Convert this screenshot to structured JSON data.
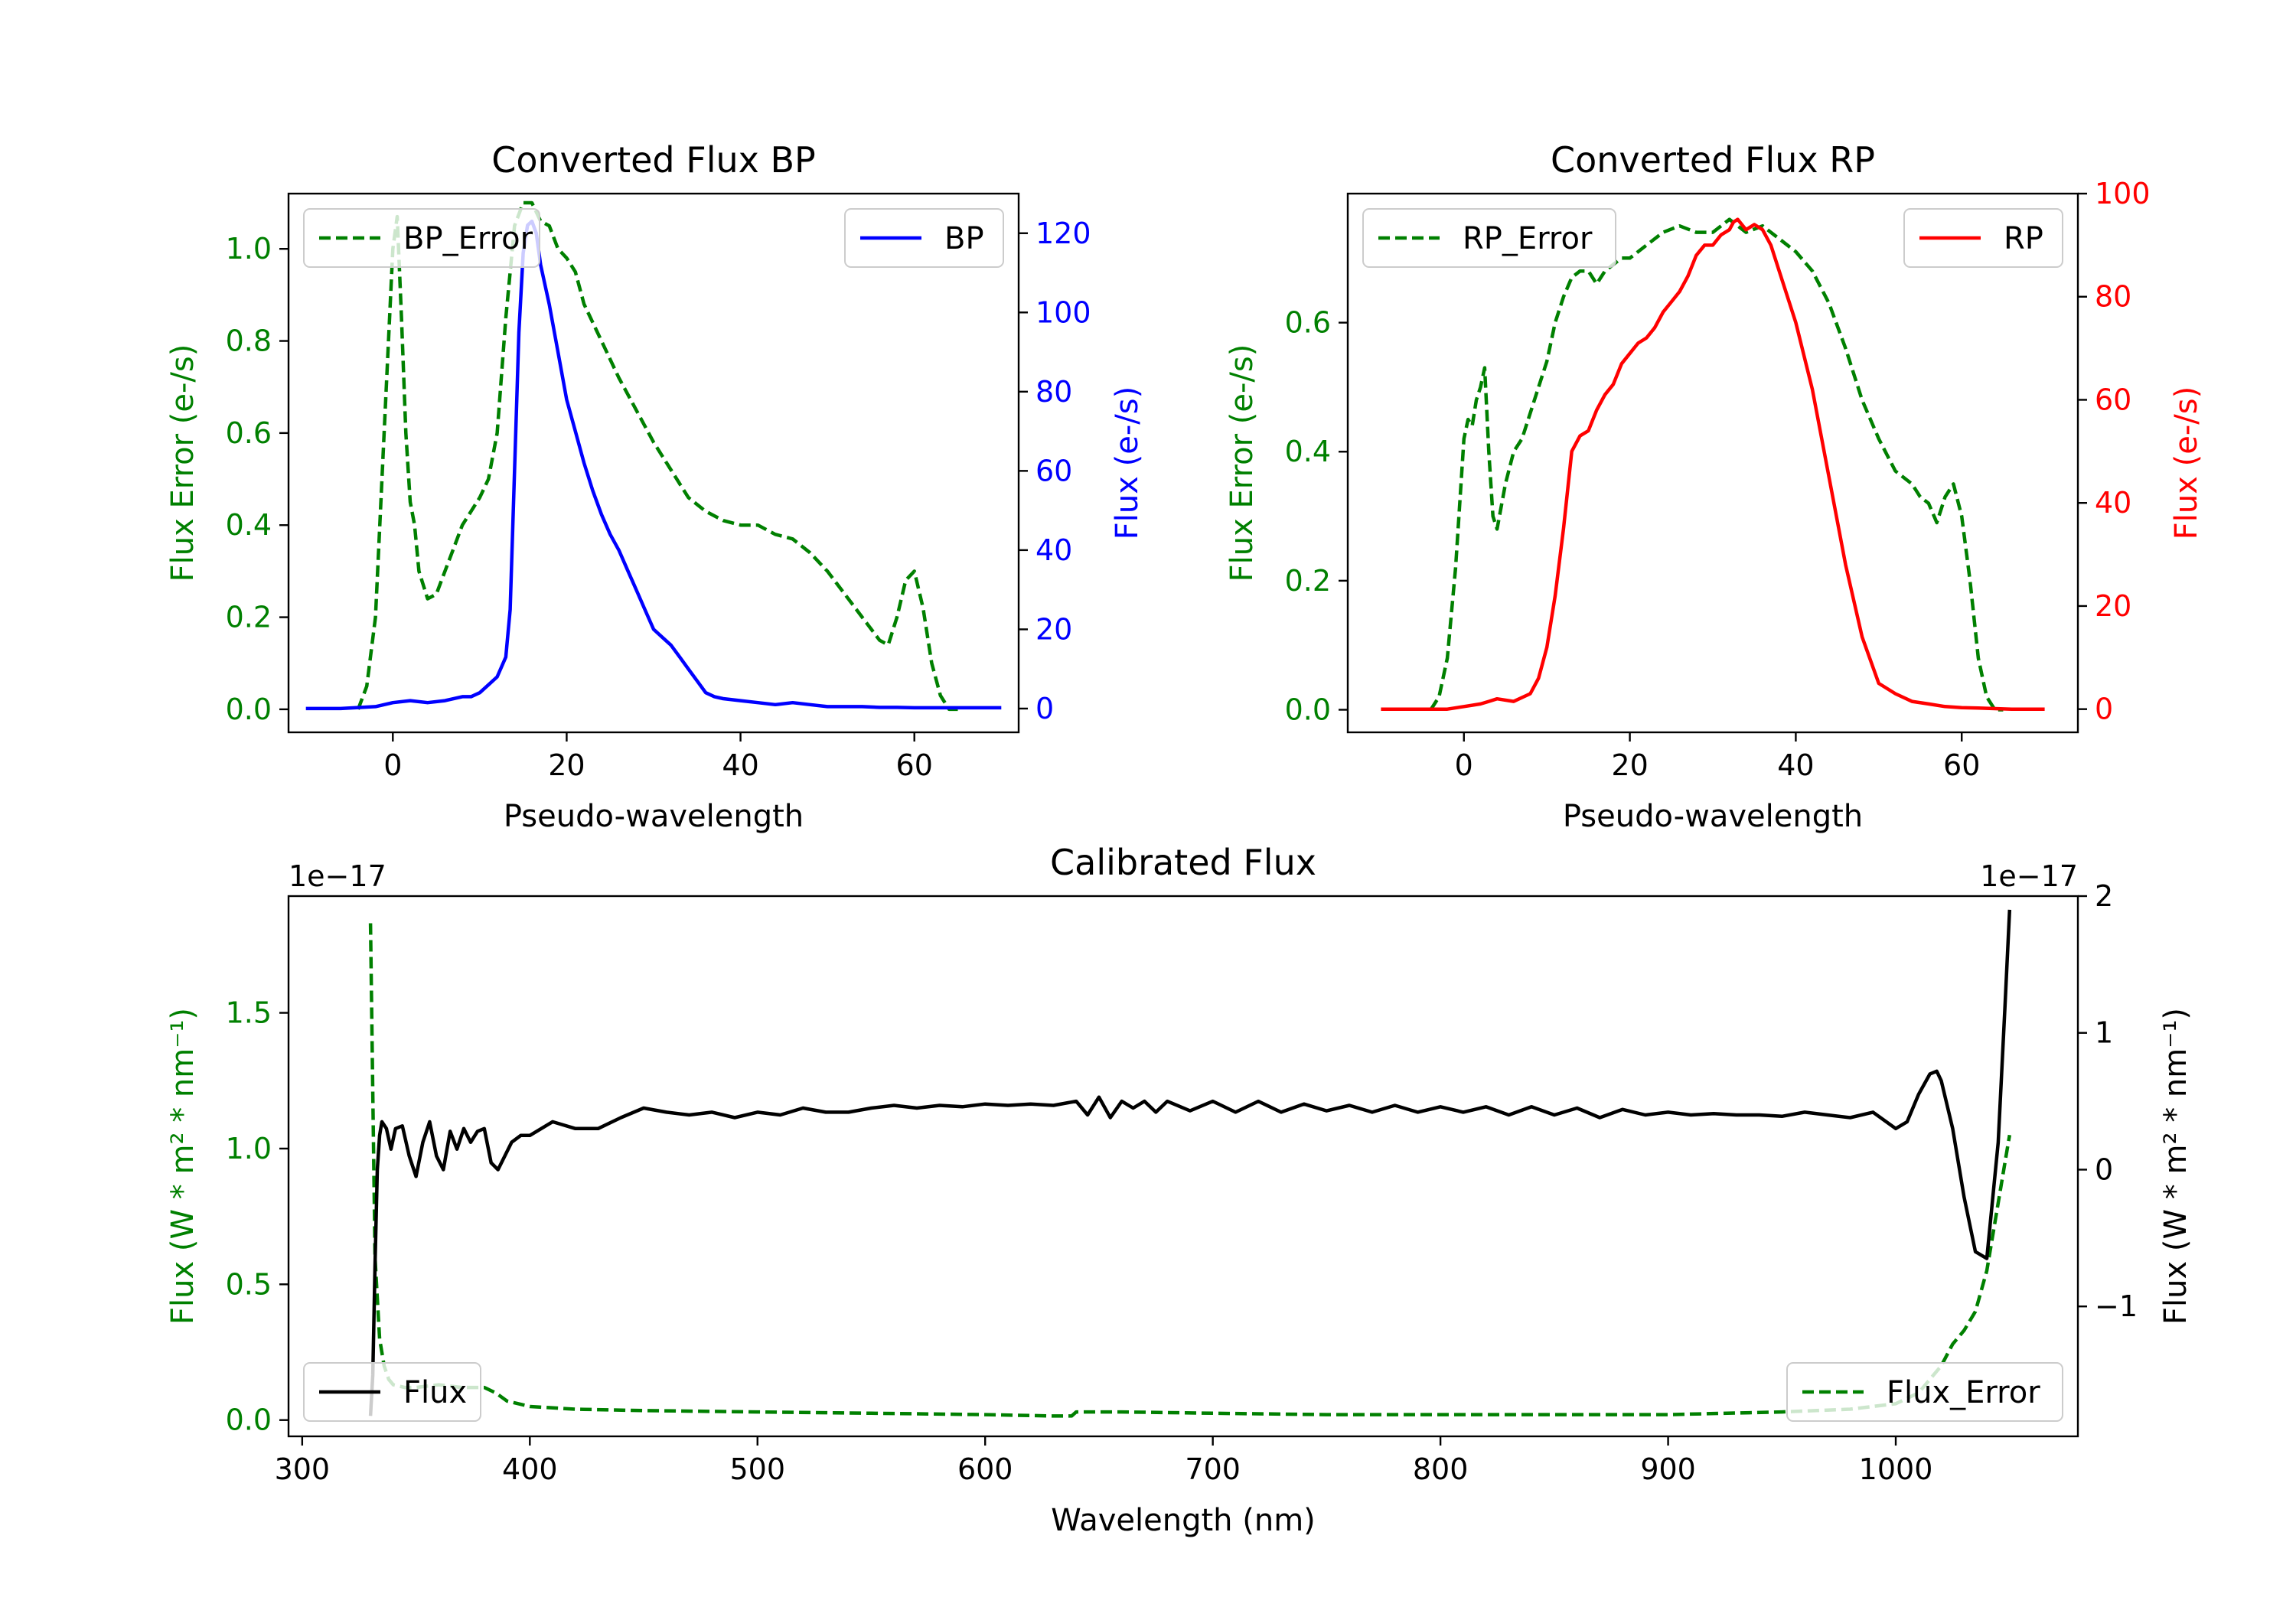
{
  "chart_data": [
    {
      "id": "bp",
      "type": "line",
      "title": "Converted Flux BP",
      "xlabel": "Pseudo-wavelength",
      "xlim": [
        -12,
        72
      ],
      "xticks": [
        0,
        20,
        40,
        60
      ],
      "left_axis": {
        "label": "Flux Error (e-/s)",
        "color": "#008000",
        "ylim": [
          -0.05,
          1.12
        ],
        "ticks": [
          "0.0",
          "0.2",
          "0.4",
          "0.6",
          "0.8",
          "1.0"
        ]
      },
      "right_axis": {
        "label": "Flux (e-/s)",
        "color": "#0000ff",
        "ylim": [
          -6,
          130
        ],
        "ticks": [
          "0",
          "20",
          "40",
          "60",
          "80",
          "100",
          "120"
        ]
      },
      "series": [
        {
          "name": "BP_Error",
          "axis": "left",
          "color": "#008000",
          "dash": true,
          "x": [
            -4,
            -3,
            -2,
            -1,
            0,
            0.5,
            1,
            1.5,
            2,
            2.5,
            3,
            4,
            5,
            6,
            7,
            8,
            9,
            10,
            11,
            12,
            13,
            14,
            15,
            16,
            17,
            18,
            19,
            20,
            21,
            22,
            24,
            26,
            28,
            30,
            32,
            34,
            36,
            38,
            40,
            42,
            44,
            46,
            48,
            50,
            52,
            54,
            56,
            57,
            58,
            59,
            60,
            61,
            62,
            63,
            64,
            65
          ],
          "y": [
            0.0,
            0.05,
            0.2,
            0.6,
            1.0,
            1.07,
            0.85,
            0.6,
            0.45,
            0.4,
            0.3,
            0.24,
            0.25,
            0.3,
            0.35,
            0.4,
            0.43,
            0.46,
            0.5,
            0.6,
            0.85,
            1.05,
            1.1,
            1.1,
            1.06,
            1.05,
            1.0,
            0.98,
            0.95,
            0.88,
            0.8,
            0.72,
            0.65,
            0.58,
            0.52,
            0.46,
            0.43,
            0.41,
            0.4,
            0.4,
            0.38,
            0.37,
            0.34,
            0.3,
            0.25,
            0.2,
            0.15,
            0.14,
            0.2,
            0.28,
            0.3,
            0.22,
            0.1,
            0.03,
            0.0,
            0.0
          ]
        },
        {
          "name": "BP",
          "axis": "right",
          "color": "#0000ff",
          "dash": false,
          "x": [
            -10,
            -6,
            -2,
            0,
            2,
            4,
            6,
            8,
            9,
            10,
            11,
            12,
            13,
            13.5,
            14,
            14.5,
            15,
            15.5,
            16,
            16.5,
            17,
            18,
            19,
            20,
            21,
            22,
            23,
            24,
            25,
            26,
            27,
            28,
            29,
            30,
            31,
            32,
            33,
            34,
            35,
            36,
            37,
            38,
            40,
            42,
            44,
            46,
            48,
            50,
            52,
            54,
            56,
            58,
            60,
            62,
            64,
            66,
            68,
            70
          ],
          "y": [
            0,
            0,
            0.5,
            1.5,
            2,
            1.5,
            2,
            3,
            3,
            4,
            6,
            8,
            13,
            25,
            60,
            95,
            115,
            122,
            123,
            120,
            112,
            102,
            90,
            78,
            70,
            62,
            55,
            49,
            44,
            40,
            35,
            30,
            25,
            20,
            18,
            16,
            13,
            10,
            7,
            4,
            3,
            2.5,
            2,
            1.5,
            1,
            1.5,
            1,
            0.5,
            0.5,
            0.5,
            0.3,
            0.3,
            0.2,
            0.2,
            0.2,
            0.2,
            0.2,
            0.2
          ]
        }
      ],
      "legend_left": "BP_Error",
      "legend_right": "BP"
    },
    {
      "id": "rp",
      "type": "line",
      "title": "Converted Flux RP",
      "xlabel": "Pseudo-wavelength",
      "xlim": [
        -14,
        74
      ],
      "xticks": [
        0,
        20,
        40,
        60
      ],
      "left_axis": {
        "label": "Flux Error (e-/s)",
        "color": "#008000",
        "ylim": [
          -0.035,
          0.8
        ],
        "ticks": [
          "0.0",
          "0.2",
          "0.4",
          "0.6"
        ]
      },
      "right_axis": {
        "label": "Flux (e-/s)",
        "color": "#ff0000",
        "ylim": [
          -4.5,
          100
        ],
        "ticks": [
          "0",
          "20",
          "40",
          "60",
          "80",
          "100"
        ]
      },
      "series": [
        {
          "name": "RP_Error",
          "axis": "left",
          "color": "#008000",
          "dash": true,
          "x": [
            -4,
            -3,
            -2,
            -1,
            0,
            0.5,
            1,
            1.5,
            2,
            2.5,
            3,
            3.5,
            4,
            5,
            6,
            7,
            8,
            9,
            10,
            11,
            12,
            13,
            14,
            15,
            16,
            17,
            18,
            19,
            20,
            22,
            24,
            26,
            28,
            30,
            31,
            32,
            34,
            36,
            38,
            40,
            42,
            44,
            46,
            48,
            50,
            52,
            54,
            55,
            56,
            57,
            58,
            59,
            60,
            61,
            62,
            63,
            64,
            65
          ],
          "y": [
            0.0,
            0.02,
            0.08,
            0.22,
            0.42,
            0.45,
            0.44,
            0.48,
            0.5,
            0.53,
            0.4,
            0.3,
            0.28,
            0.35,
            0.4,
            0.42,
            0.46,
            0.5,
            0.54,
            0.6,
            0.64,
            0.67,
            0.68,
            0.68,
            0.66,
            0.68,
            0.69,
            0.7,
            0.7,
            0.72,
            0.74,
            0.75,
            0.74,
            0.74,
            0.75,
            0.76,
            0.74,
            0.75,
            0.73,
            0.71,
            0.68,
            0.63,
            0.56,
            0.48,
            0.42,
            0.37,
            0.35,
            0.33,
            0.32,
            0.29,
            0.33,
            0.35,
            0.3,
            0.2,
            0.08,
            0.02,
            0.0,
            0.0
          ]
        },
        {
          "name": "RP",
          "axis": "right",
          "color": "#ff0000",
          "dash": false,
          "x": [
            -10,
            -6,
            -2,
            0,
            2,
            3,
            4,
            6,
            8,
            9,
            10,
            11,
            12,
            13,
            14,
            15,
            16,
            17,
            18,
            19,
            20,
            21,
            22,
            23,
            24,
            25,
            26,
            27,
            28,
            29,
            30,
            31,
            32,
            32.5,
            33,
            33.5,
            34,
            35,
            36,
            37,
            38,
            40,
            42,
            44,
            46,
            48,
            50,
            52,
            54,
            56,
            58,
            60,
            62,
            64,
            66,
            68,
            70
          ],
          "y": [
            0,
            0,
            0,
            0.5,
            1,
            1.5,
            2,
            1.5,
            3,
            6,
            12,
            22,
            35,
            50,
            53,
            54,
            58,
            61,
            63,
            67,
            69,
            71,
            72,
            74,
            77,
            79,
            81,
            84,
            88,
            90,
            90,
            92,
            93,
            94.5,
            95,
            94,
            93,
            94,
            93,
            90,
            85,
            75,
            62,
            45,
            28,
            14,
            5,
            3,
            1.5,
            1,
            0.5,
            0.3,
            0.2,
            0.1,
            0,
            0,
            0
          ]
        }
      ],
      "legend_left": "RP_Error",
      "legend_right": "RP"
    },
    {
      "id": "cal",
      "type": "line",
      "title": "Calibrated Flux",
      "xlabel": "Wavelength (nm)",
      "xlim": [
        294,
        1080
      ],
      "xticks": [
        300,
        400,
        500,
        600,
        700,
        800,
        900,
        1000
      ],
      "left_axis": {
        "label": "Flux (W * m² * nm⁻¹)",
        "color": "#008000",
        "offset_text": "1e−17",
        "ylim": [
          -0.06,
          1.93
        ],
        "ticks": [
          "0.0",
          "0.5",
          "1.0",
          "1.5"
        ]
      },
      "right_axis": {
        "label": "Flux (W * m² * nm⁻¹)",
        "color": "#000000",
        "offset_text": "1e−17",
        "ylim": [
          -1.95,
          2.0
        ],
        "ticks": [
          "−1",
          "0",
          "1",
          "2"
        ]
      },
      "series": [
        {
          "name": "Flux_Error",
          "axis": "left",
          "color": "#008000",
          "dash": true,
          "x": [
            330,
            332,
            334,
            336,
            338,
            340,
            345,
            350,
            360,
            370,
            380,
            385,
            390,
            400,
            420,
            450,
            500,
            550,
            600,
            630,
            638,
            640,
            645,
            660,
            700,
            750,
            800,
            850,
            900,
            950,
            980,
            1000,
            1010,
            1020,
            1025,
            1030,
            1035,
            1040,
            1045,
            1048,
            1050
          ],
          "y": [
            1.83,
            0.6,
            0.3,
            0.2,
            0.15,
            0.13,
            0.12,
            0.12,
            0.13,
            0.12,
            0.12,
            0.1,
            0.07,
            0.05,
            0.04,
            0.035,
            0.03,
            0.025,
            0.02,
            0.015,
            0.015,
            0.03,
            0.03,
            0.03,
            0.025,
            0.02,
            0.02,
            0.02,
            0.02,
            0.03,
            0.04,
            0.06,
            0.1,
            0.2,
            0.28,
            0.33,
            0.4,
            0.55,
            0.8,
            0.95,
            1.05
          ]
        },
        {
          "name": "Flux",
          "axis": "right",
          "color": "#000000",
          "dash": false,
          "x": [
            330,
            331,
            332,
            333,
            334,
            335,
            337,
            339,
            341,
            344,
            347,
            350,
            353,
            356,
            359,
            362,
            365,
            368,
            371,
            374,
            377,
            380,
            383,
            386,
            389,
            392,
            396,
            400,
            410,
            420,
            430,
            440,
            450,
            460,
            470,
            480,
            490,
            500,
            510,
            520,
            530,
            540,
            550,
            560,
            570,
            580,
            590,
            600,
            610,
            620,
            630,
            640,
            645,
            650,
            655,
            660,
            665,
            670,
            675,
            680,
            690,
            700,
            710,
            720,
            730,
            740,
            750,
            760,
            770,
            780,
            790,
            800,
            810,
            820,
            830,
            840,
            850,
            860,
            870,
            880,
            890,
            900,
            910,
            920,
            930,
            940,
            950,
            960,
            970,
            980,
            990,
            1000,
            1005,
            1010,
            1015,
            1018,
            1020,
            1025,
            1030,
            1035,
            1040,
            1045,
            1048,
            1050
          ],
          "y": [
            -1.8,
            -1.5,
            -0.7,
            0.0,
            0.25,
            0.35,
            0.3,
            0.15,
            0.3,
            0.32,
            0.1,
            -0.05,
            0.2,
            0.35,
            0.1,
            0.0,
            0.28,
            0.15,
            0.3,
            0.2,
            0.28,
            0.3,
            0.05,
            0.0,
            0.1,
            0.2,
            0.25,
            0.25,
            0.35,
            0.3,
            0.3,
            0.38,
            0.45,
            0.42,
            0.4,
            0.42,
            0.38,
            0.42,
            0.4,
            0.45,
            0.42,
            0.42,
            0.45,
            0.47,
            0.45,
            0.47,
            0.46,
            0.48,
            0.47,
            0.48,
            0.47,
            0.5,
            0.4,
            0.53,
            0.38,
            0.5,
            0.45,
            0.5,
            0.42,
            0.5,
            0.43,
            0.5,
            0.42,
            0.5,
            0.42,
            0.48,
            0.43,
            0.47,
            0.42,
            0.47,
            0.42,
            0.46,
            0.42,
            0.46,
            0.4,
            0.46,
            0.4,
            0.45,
            0.38,
            0.44,
            0.4,
            0.42,
            0.4,
            0.41,
            0.4,
            0.4,
            0.39,
            0.42,
            0.4,
            0.38,
            0.42,
            0.3,
            0.35,
            0.55,
            0.7,
            0.72,
            0.65,
            0.3,
            -0.2,
            -0.6,
            -0.65,
            0.2,
            1.2,
            1.9
          ]
        }
      ],
      "legend_left": "Flux",
      "legend_right": "Flux_Error"
    }
  ]
}
